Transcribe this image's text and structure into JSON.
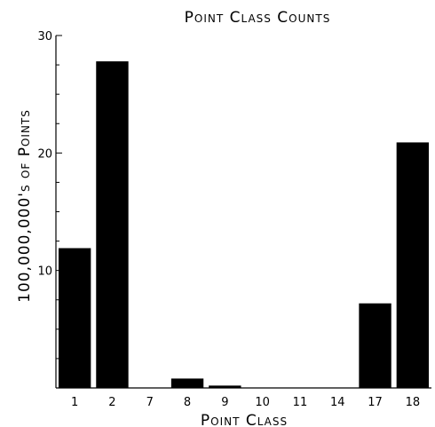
{
  "chart_data": {
    "type": "bar",
    "title": "Point Class Counts",
    "xlabel": "Point Class",
    "ylabel": "100,000,000's of Points",
    "categories": [
      "1",
      "2",
      "7",
      "8",
      "9",
      "10",
      "11",
      "14",
      "17",
      "18"
    ],
    "values": [
      11.9,
      27.8,
      0,
      0.8,
      0.2,
      0,
      0,
      0,
      7.2,
      20.9
    ],
    "ylim": [
      0,
      30
    ],
    "yticks": [
      "10",
      "20",
      "30"
    ],
    "grid": false,
    "legend": "none",
    "bar_color": "#000000"
  }
}
